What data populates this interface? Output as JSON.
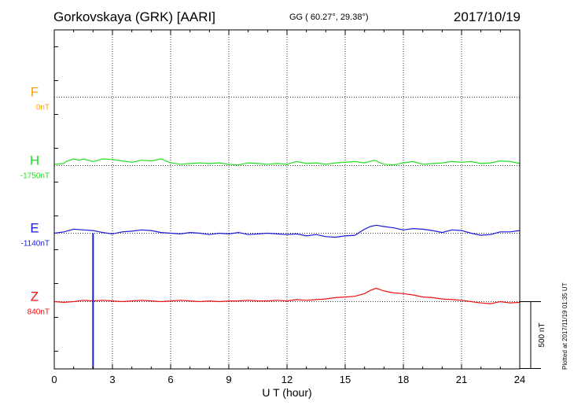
{
  "header": {
    "station": "Gorkovskaya (GRK)  [AARI]",
    "coordinates": "GG ( 60.27°,  29.38°)",
    "date": "2017/10/19"
  },
  "plotted_note": "Plotted at 2017/11/19 01:35 UT",
  "colors": {
    "F": "#f5a300",
    "H": "#22dd22",
    "E": "#1a1adb",
    "Z": "#ee1111",
    "axis": "#000000"
  },
  "chart_data": {
    "type": "line",
    "xlabel": "U T (hour)",
    "xlim": [
      0,
      24
    ],
    "xticks": [
      0,
      3,
      6,
      9,
      12,
      15,
      18,
      21,
      24
    ],
    "grid": true,
    "scale_bar": {
      "label": "500 nT",
      "value": 500
    },
    "series": [
      {
        "name": "F",
        "baseline_label": "0nT",
        "baseline": 0,
        "values": []
      },
      {
        "name": "H",
        "baseline_label": "-1750nT",
        "baseline": -1750,
        "x": [
          0,
          0.5,
          0.6,
          1.0,
          1.3,
          1.5,
          2.0,
          2.5,
          3.0,
          3.5,
          4.0,
          4.5,
          5.0,
          5.5,
          6.0,
          6.5,
          7.0,
          7.5,
          8.0,
          8.5,
          9.0,
          9.5,
          10.0,
          10.5,
          11.0,
          11.5,
          12.0,
          12.5,
          13.0,
          13.5,
          14.0,
          14.5,
          15.0,
          15.5,
          16.0,
          16.5,
          17.0,
          17.5,
          18.0,
          18.5,
          19.0,
          19.5,
          20.0,
          20.5,
          21.0,
          21.5,
          22.0,
          22.5,
          23.0,
          23.5,
          24.0
        ],
        "y": [
          -1740,
          -1735,
          -1720,
          -1700,
          -1710,
          -1700,
          -1720,
          -1700,
          -1705,
          -1715,
          -1725,
          -1710,
          -1715,
          -1700,
          -1730,
          -1740,
          -1735,
          -1730,
          -1735,
          -1730,
          -1740,
          -1745,
          -1730,
          -1735,
          -1740,
          -1735,
          -1740,
          -1720,
          -1735,
          -1730,
          -1740,
          -1730,
          -1725,
          -1720,
          -1730,
          -1710,
          -1740,
          -1745,
          -1730,
          -1720,
          -1740,
          -1735,
          -1730,
          -1720,
          -1725,
          -1720,
          -1735,
          -1730,
          -1715,
          -1720,
          -1735
        ]
      },
      {
        "name": "E",
        "baseline_label": "-1140nT",
        "baseline": -1140,
        "x": [
          0,
          0.5,
          1.0,
          1.5,
          2.0,
          2.5,
          3.0,
          3.5,
          4.0,
          4.5,
          5.0,
          5.5,
          6.0,
          6.5,
          7.0,
          7.5,
          8.0,
          8.5,
          9.0,
          9.5,
          10.0,
          10.5,
          11.0,
          11.5,
          12.0,
          12.5,
          13.0,
          13.5,
          14.0,
          14.5,
          15.0,
          15.5,
          16.0,
          16.3,
          16.6,
          17.0,
          17.5,
          18.0,
          18.5,
          19.0,
          19.5,
          20.0,
          20.5,
          21.0,
          21.5,
          22.0,
          22.5,
          23.0,
          23.5,
          24.0
        ],
        "y": [
          -1140,
          -1130,
          -1110,
          -1115,
          -1120,
          -1135,
          -1145,
          -1130,
          -1125,
          -1115,
          -1120,
          -1135,
          -1140,
          -1145,
          -1135,
          -1140,
          -1150,
          -1140,
          -1145,
          -1135,
          -1150,
          -1145,
          -1140,
          -1145,
          -1150,
          -1145,
          -1160,
          -1150,
          -1165,
          -1170,
          -1160,
          -1155,
          -1110,
          -1090,
          -1080,
          -1090,
          -1100,
          -1115,
          -1105,
          -1110,
          -1120,
          -1135,
          -1115,
          -1120,
          -1140,
          -1155,
          -1150,
          -1130,
          -1130,
          -1120
        ]
      },
      {
        "name": "Z",
        "baseline_label": "840nT",
        "baseline": 840,
        "x": [
          0,
          0.5,
          1.0,
          1.5,
          2.0,
          2.5,
          3.0,
          3.5,
          4.0,
          4.5,
          5.0,
          5.5,
          6.0,
          6.5,
          7.0,
          7.5,
          8.0,
          8.5,
          9.0,
          9.5,
          10.0,
          10.5,
          11.0,
          11.5,
          12.0,
          12.5,
          13.0,
          13.5,
          14.0,
          14.5,
          15.0,
          15.5,
          16.0,
          16.3,
          16.6,
          17.0,
          17.5,
          18.0,
          18.5,
          19.0,
          19.5,
          20.0,
          20.5,
          21.0,
          21.5,
          22.0,
          22.5,
          23.0,
          23.5,
          24.0
        ],
        "y": [
          840,
          835,
          840,
          850,
          845,
          850,
          845,
          840,
          845,
          850,
          845,
          840,
          845,
          850,
          845,
          840,
          845,
          840,
          845,
          845,
          850,
          845,
          845,
          850,
          845,
          855,
          850,
          855,
          860,
          870,
          875,
          880,
          900,
          925,
          940,
          920,
          905,
          900,
          890,
          875,
          870,
          860,
          855,
          850,
          840,
          830,
          825,
          840,
          830,
          835
        ]
      }
    ],
    "annotations": [
      {
        "type": "spike",
        "series": "E",
        "x": 2.0,
        "y_top": -1140,
        "y_bottom": -2160
      }
    ]
  }
}
